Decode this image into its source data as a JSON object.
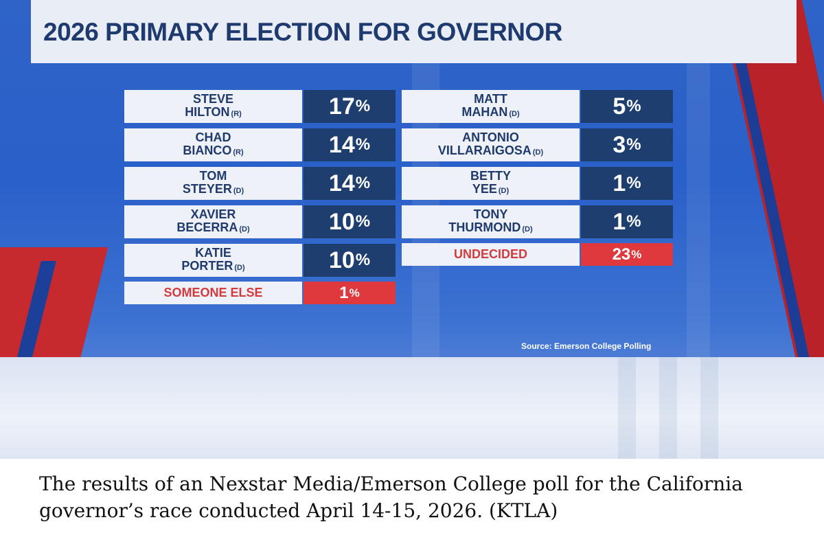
{
  "chart_data": {
    "type": "table",
    "title": "2026 PRIMARY ELECTION FOR GOVERNOR",
    "source": "Source: Emerson College Polling",
    "unit": "%",
    "candidates": [
      {
        "first": "STEVE",
        "last": "HILTON",
        "party": "(R)",
        "value": 17,
        "label": "17"
      },
      {
        "first": "CHAD",
        "last": "BIANCO",
        "party": "(R)",
        "value": 14,
        "label": "14"
      },
      {
        "first": "TOM",
        "last": "STEYER",
        "party": "(D)",
        "value": 14,
        "label": "14"
      },
      {
        "first": "XAVIER",
        "last": "BECERRA",
        "party": "(D)",
        "value": 10,
        "label": "10"
      },
      {
        "first": "KATIE",
        "last": "PORTER",
        "party": "(D)",
        "value": 10,
        "label": "10"
      },
      {
        "first": "MATT",
        "last": "MAHAN",
        "party": "(D)",
        "value": 5,
        "label": "5"
      },
      {
        "first": "ANTONIO",
        "last": "VILLARAIGOSA",
        "party": "(D)",
        "value": 3,
        "label": "3"
      },
      {
        "first": "BETTY",
        "last": "YEE",
        "party": "(D)",
        "value": 1,
        "label": "1"
      },
      {
        "first": "TONY",
        "last": "THURMOND",
        "party": "(D)",
        "value": 1,
        "label": "1"
      }
    ],
    "other": [
      {
        "label": "SOMEONE ELSE",
        "value": 1,
        "value_label": "1"
      },
      {
        "label": "UNDECIDED",
        "value": 23,
        "value_label": "23"
      }
    ]
  },
  "caption": "The results of an Nexstar Media/Emerson College poll for the California governor’s race conducted April 14-15, 2026. (KTLA)",
  "colors": {
    "name_bg": "#eef2f8",
    "value_bg": "#1e3e70",
    "highlight_red": "#e0393d"
  }
}
